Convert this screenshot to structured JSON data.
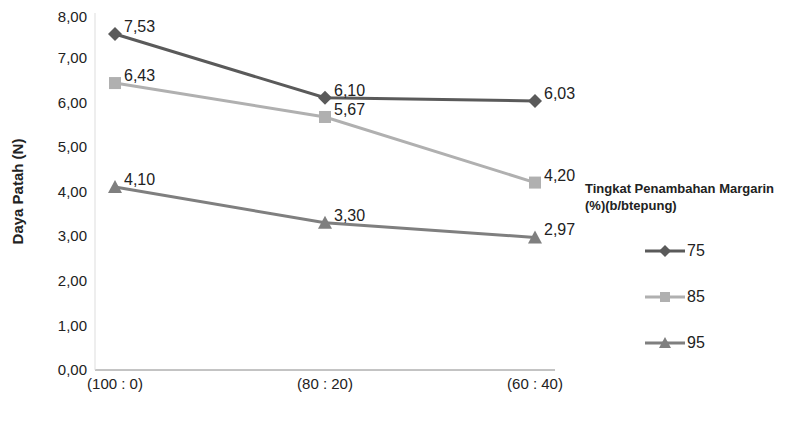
{
  "chart_data": {
    "type": "line",
    "y_label": "Daya Patah (N)",
    "legend_title": "Tingkat Penambahan Margarin (%)(b/btepung)",
    "legend": "right",
    "grid": false,
    "data_labels": true,
    "categories": [
      "(100 : 0)",
      "(80 : 20)",
      "(60 : 40)"
    ],
    "ylim": [
      0,
      8
    ],
    "yticks": [
      {
        "value": 0,
        "label": "0,00"
      },
      {
        "value": 1,
        "label": "1,00"
      },
      {
        "value": 2,
        "label": "2,00"
      },
      {
        "value": 3,
        "label": "3,00"
      },
      {
        "value": 4,
        "label": "4,00"
      },
      {
        "value": 5,
        "label": "5,00"
      },
      {
        "value": 6,
        "label": "6,00"
      },
      {
        "value": 7,
        "label": "7,00"
      },
      {
        "value": 8,
        "label": "8,00"
      }
    ],
    "series": [
      {
        "name": "75",
        "color": "#5a5a5a",
        "marker": "diamond",
        "values": [
          7.53,
          6.1,
          6.03
        ],
        "value_labels": [
          "7,53",
          "6,10",
          "6,03"
        ]
      },
      {
        "name": "85",
        "color": "#b0b0b0",
        "marker": "square",
        "values": [
          6.43,
          5.67,
          4.2
        ],
        "value_labels": [
          "6,43",
          "5,67",
          "4,20"
        ]
      },
      {
        "name": "95",
        "color": "#7f7f7f",
        "marker": "triangle",
        "values": [
          4.1,
          3.3,
          2.97
        ],
        "value_labels": [
          "4,10",
          "3,30",
          "2,97"
        ]
      }
    ]
  }
}
